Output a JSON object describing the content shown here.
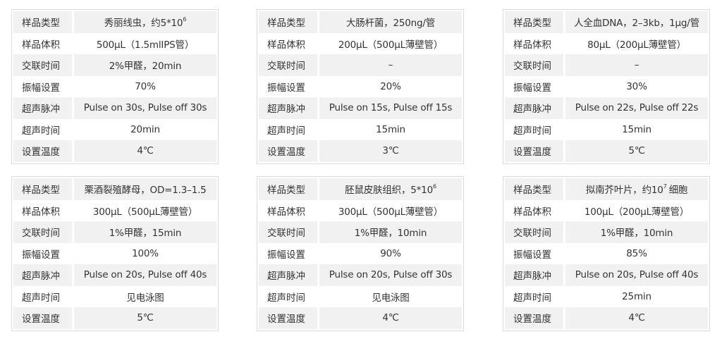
{
  "tables": [
    {
      "rows": [
        {
          "label": "样品类型",
          "value": "秀丽线虫，约5*10",
          "sup": "6",
          "suffix": ""
        },
        {
          "label": "样品体积",
          "value": "500µL（1.5mlIPS管）"
        },
        {
          "label": "交联时间",
          "value": "2%甲醛，20min"
        },
        {
          "label": "振幅设置",
          "value": "70%"
        },
        {
          "label": "超声脉冲",
          "value": "Pulse on 30s, Pulse off 30s"
        },
        {
          "label": "超声时间",
          "value": "20min"
        },
        {
          "label": "设置温度",
          "value": "4℃"
        }
      ]
    },
    {
      "rows": [
        {
          "label": "样品类型",
          "value": "大肠杆菌，250ng/管"
        },
        {
          "label": "样品体积",
          "value": "200µL（500µL薄壁管）"
        },
        {
          "label": "交联时间",
          "value": "–"
        },
        {
          "label": "振幅设置",
          "value": "20%"
        },
        {
          "label": "超声脉冲",
          "value": "Pulse on 15s, Pulse off 15s"
        },
        {
          "label": "超声时间",
          "value": "15min"
        },
        {
          "label": "设置温度",
          "value": "3℃"
        }
      ]
    },
    {
      "rows": [
        {
          "label": "样品类型",
          "value": "人全血DNA，2–3kb，1µg/管"
        },
        {
          "label": "样品体积",
          "value": "80µL（200µL薄壁管）"
        },
        {
          "label": "交联时间",
          "value": "–"
        },
        {
          "label": "振幅设置",
          "value": "30%"
        },
        {
          "label": "超声脉冲",
          "value": "Pulse on 22s, Pulse off 22s"
        },
        {
          "label": "超声时间",
          "value": "15min"
        },
        {
          "label": "设置温度",
          "value": "5℃"
        }
      ]
    },
    {
      "rows": [
        {
          "label": "样品类型",
          "value": "栗酒裂殖酵母，OD=1.3–1.5"
        },
        {
          "label": "样品体积",
          "value": "300µL（500µL薄壁管）"
        },
        {
          "label": "交联时间",
          "value": "1%甲醛，15min"
        },
        {
          "label": "振幅设置",
          "value": "100%"
        },
        {
          "label": "超声脉冲",
          "value": "Pulse on 20s, Pulse off 40s"
        },
        {
          "label": "超声时间",
          "value": "见电泳图"
        },
        {
          "label": "设置温度",
          "value": "5℃"
        }
      ]
    },
    {
      "rows": [
        {
          "label": "样品类型",
          "value": "胚鼠皮肤组织，5*10",
          "sup": "6",
          "suffix": ""
        },
        {
          "label": "样品体积",
          "value": "300µL（500µL薄壁管）"
        },
        {
          "label": "交联时间",
          "value": "1%甲醛，10min"
        },
        {
          "label": "振幅设置",
          "value": "90%"
        },
        {
          "label": "超声脉冲",
          "value": "Pulse on 20s, Pulse off 30s"
        },
        {
          "label": "超声时间",
          "value": "见电泳图"
        },
        {
          "label": "设置温度",
          "value": "4℃"
        }
      ]
    },
    {
      "rows": [
        {
          "label": "样品类型",
          "value": "拟南芥叶片，约10",
          "sup": "7",
          "suffix": "细胞"
        },
        {
          "label": "样品体积",
          "value": "100µL（200µL薄壁管）"
        },
        {
          "label": "交联时间",
          "value": "1%甲醛，10min"
        },
        {
          "label": "振幅设置",
          "value": "85%"
        },
        {
          "label": "超声脉冲",
          "value": "Pulse on 20s, Pulse off 40s"
        },
        {
          "label": "超声时间",
          "value": "25min"
        },
        {
          "label": "设置温度",
          "value": "4℃"
        }
      ]
    }
  ]
}
